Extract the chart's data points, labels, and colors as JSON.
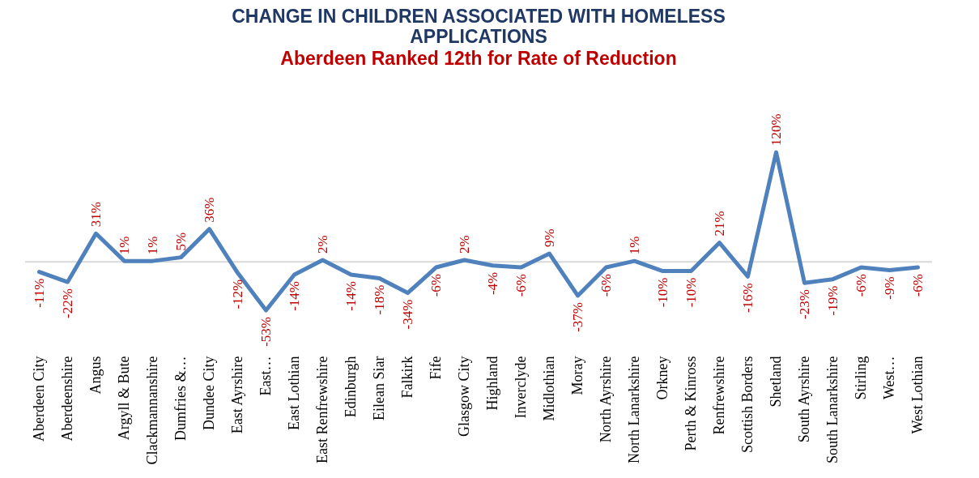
{
  "chart_data": {
    "type": "line",
    "title": "CHANGE IN CHILDREN ASSOCIATED WITH HOMELESS APPLICATIONS",
    "subtitle": "Aberdeen Ranked 12th for Rate of Reduction",
    "categories": [
      "Aberdeen City",
      "Aberdeenshire",
      "Angus",
      "Argyll & Bute",
      "Clackmannanshire",
      "Dumfries &…",
      "Dundee City",
      "East Ayrshire",
      "East…",
      "East Lothian",
      "East Renfrewshire",
      "Edinburgh",
      "Eilean Siar",
      "Falkirk",
      "Fife",
      "Glasgow City",
      "Highland",
      "Inverclyde",
      "Midlothian",
      "Moray",
      "North Ayrshire",
      "North Lanarkshire",
      "Orkney",
      "Perth & Kinross",
      "Renfrewshire",
      "Scottish Borders",
      "Shetland",
      "South Ayrshire",
      "South Lanarkshire",
      "Stirling",
      "West…",
      "West Lothian"
    ],
    "series": [
      {
        "color": "#4f81bd",
        "values": [
          -11,
          -22,
          31,
          1,
          1,
          5,
          36,
          -12,
          -53,
          -14,
          2,
          -14,
          -18,
          -34,
          -6,
          2,
          -4,
          -6,
          9,
          -37,
          -6,
          1,
          -10,
          -10,
          21,
          -16,
          120,
          -23,
          -19,
          -6,
          -9,
          -6
        ],
        "value_labels": [
          "-11%",
          "-22%",
          "31%",
          "1%",
          "1%",
          "5%",
          "36%",
          "-12%",
          "-53%",
          "-14%",
          "2%",
          "-14%",
          "-18%",
          "-34%",
          "-6%",
          "2%",
          "-4%",
          "-6%",
          "9%",
          "-37%",
          "-6%",
          "1%",
          "-10%",
          "-10%",
          "21%",
          "-16%",
          "120%",
          "-23%",
          "-19%",
          "-6%",
          "-9%",
          "-6%"
        ]
      }
    ],
    "grid": false,
    "marker": "none",
    "line_style": "solid"
  }
}
